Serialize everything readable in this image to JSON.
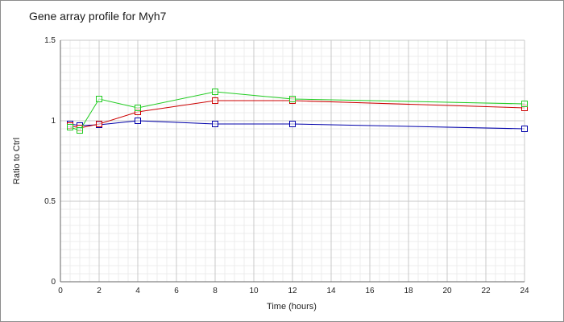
{
  "chart_data": {
    "type": "line",
    "title": "Gene array profile for Myh7",
    "xlabel": "Time (hours)",
    "ylabel": "Ratio to Ctrl",
    "xlim": [
      0,
      24
    ],
    "ylim": [
      0,
      1.5
    ],
    "x_ticks": [
      "0",
      "2",
      "4",
      "6",
      "8",
      "10",
      "12",
      "14",
      "16",
      "18",
      "20",
      "22",
      "24"
    ],
    "y_ticks": [
      "0",
      "0.5",
      "1",
      "1.5"
    ],
    "grid": true,
    "legend": "none",
    "series": [
      {
        "color": "#0000aa",
        "x": [
          0.5,
          1,
          2,
          4,
          8,
          12,
          24
        ],
        "y": [
          0.98,
          0.97,
          0.975,
          1.0,
          0.98,
          0.98,
          0.95
        ]
      },
      {
        "color": "#cc0000",
        "x": [
          0.5,
          1,
          2,
          4,
          8,
          12,
          24
        ],
        "y": [
          0.97,
          0.955,
          0.98,
          1.055,
          1.125,
          1.125,
          1.08
        ]
      },
      {
        "color": "#22cc22",
        "x": [
          0.5,
          1,
          2,
          4,
          8,
          12,
          24
        ],
        "y": [
          0.96,
          0.94,
          1.135,
          1.08,
          1.18,
          1.135,
          1.105
        ]
      }
    ]
  }
}
